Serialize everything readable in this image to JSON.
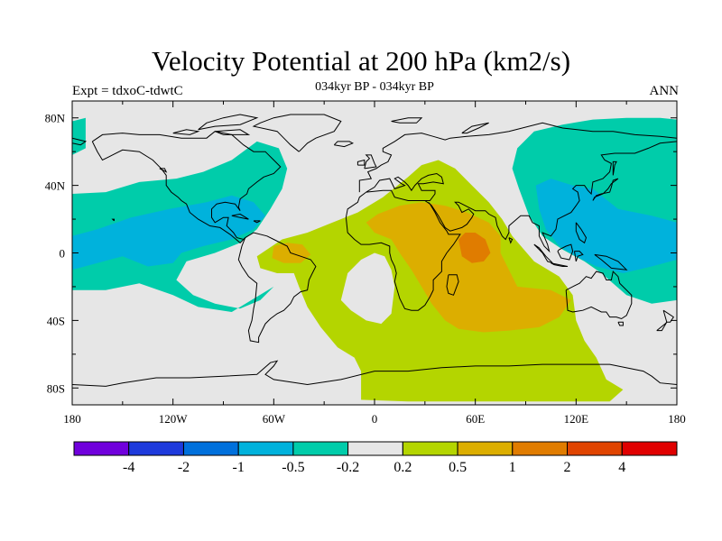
{
  "title": "Velocity Potential at 200 hPa (km2/s)",
  "subtitle": "034kyr BP - 034kyr BP",
  "left_label": "Expt = tdxoC-tdwtC",
  "right_label": "ANN",
  "map": {
    "lon_range": [
      -180,
      180
    ],
    "lat_range": [
      -90,
      90
    ],
    "x_ticks": [
      {
        "value": -180,
        "label": "180"
      },
      {
        "value": -120,
        "label": "120W"
      },
      {
        "value": -60,
        "label": "60W"
      },
      {
        "value": 0,
        "label": "0"
      },
      {
        "value": 60,
        "label": "60E"
      },
      {
        "value": 120,
        "label": "120E"
      },
      {
        "value": 180,
        "label": "180"
      }
    ],
    "y_ticks": [
      {
        "value": 80,
        "label": "80N"
      },
      {
        "value": 40,
        "label": "40N"
      },
      {
        "value": 0,
        "label": "0"
      },
      {
        "value": -40,
        "label": "40S"
      },
      {
        "value": -80,
        "label": "80S"
      }
    ],
    "colors": {
      "neutral": "#e6e6e6",
      "neg_0_5": "#00ccaa",
      "neg_1": "#00b2dc",
      "pos_0_2": "#b4d500",
      "pos_0_5": "#dcae00",
      "pos_1": "#e07c00"
    },
    "regions": [
      {
        "level": "neg_0_5",
        "points": [
          [
            -180,
            78
          ],
          [
            -172,
            80
          ],
          [
            -172,
            62
          ],
          [
            -180,
            58
          ]
        ]
      },
      {
        "level": "neg_0_5",
        "points": [
          [
            -180,
            35
          ],
          [
            -160,
            36
          ],
          [
            -140,
            42
          ],
          [
            -118,
            44
          ],
          [
            -102,
            48
          ],
          [
            -85,
            55
          ],
          [
            -70,
            66
          ],
          [
            -57,
            62
          ],
          [
            -52,
            50
          ],
          [
            -55,
            38
          ],
          [
            -62,
            26
          ],
          [
            -70,
            14
          ],
          [
            -80,
            6
          ],
          [
            -95,
            0
          ],
          [
            -112,
            -5
          ],
          [
            -118,
            -16
          ],
          [
            -108,
            -25
          ],
          [
            -95,
            -30
          ],
          [
            -80,
            -33
          ],
          [
            -68,
            -28
          ],
          [
            -60,
            -20
          ],
          [
            -85,
            -35
          ],
          [
            -105,
            -32
          ],
          [
            -120,
            -25
          ],
          [
            -140,
            -18
          ],
          [
            -160,
            -22
          ],
          [
            -180,
            -22
          ]
        ]
      },
      {
        "level": "neg_1",
        "points": [
          [
            -180,
            10
          ],
          [
            -165,
            14
          ],
          [
            -145,
            21
          ],
          [
            -122,
            26
          ],
          [
            -100,
            30
          ],
          [
            -85,
            34
          ],
          [
            -72,
            30
          ],
          [
            -65,
            22
          ],
          [
            -72,
            14
          ],
          [
            -85,
            8
          ],
          [
            -102,
            4
          ],
          [
            -115,
            0
          ],
          [
            -120,
            -6
          ],
          [
            -135,
            -8
          ],
          [
            -150,
            -2
          ],
          [
            -165,
            -6
          ],
          [
            -180,
            -10
          ]
        ]
      },
      {
        "level": "neg_0_5",
        "points": [
          [
            -131,
            -10
          ],
          [
            -124,
            -8
          ],
          [
            -119,
            -13
          ],
          [
            -124,
            -16
          ],
          [
            -131,
            -14
          ]
        ]
      },
      {
        "level": "neg_0_5",
        "points": [
          [
            -8,
            2
          ],
          [
            -4,
            5
          ],
          [
            2,
            4
          ],
          [
            4,
            -2
          ],
          [
            0,
            -8
          ],
          [
            -6,
            -7
          ]
        ]
      },
      {
        "level": "neg_0_5",
        "points": [
          [
            85,
            62
          ],
          [
            95,
            72
          ],
          [
            112,
            76
          ],
          [
            130,
            79
          ],
          [
            150,
            80
          ],
          [
            170,
            80
          ],
          [
            180,
            79
          ],
          [
            180,
            -28
          ],
          [
            165,
            -30
          ],
          [
            150,
            -25
          ],
          [
            135,
            -12
          ],
          [
            125,
            -5
          ],
          [
            112,
            2
          ],
          [
            100,
            10
          ],
          [
            92,
            22
          ],
          [
            86,
            38
          ],
          [
            82,
            50
          ]
        ]
      },
      {
        "level": "neg_1",
        "points": [
          [
            96,
            40
          ],
          [
            105,
            44
          ],
          [
            118,
            40
          ],
          [
            130,
            38
          ],
          [
            145,
            26
          ],
          [
            165,
            22
          ],
          [
            180,
            18
          ],
          [
            180,
            -4
          ],
          [
            165,
            -8
          ],
          [
            148,
            -12
          ],
          [
            132,
            -8
          ],
          [
            120,
            -2
          ],
          [
            110,
            4
          ],
          [
            102,
            14
          ],
          [
            98,
            26
          ]
        ]
      },
      {
        "level": "pos_0_2",
        "points": [
          [
            -70,
            -2
          ],
          [
            -55,
            8
          ],
          [
            -40,
            12
          ],
          [
            -25,
            18
          ],
          [
            -10,
            24
          ],
          [
            5,
            33
          ],
          [
            20,
            45
          ],
          [
            28,
            52
          ],
          [
            38,
            55
          ],
          [
            48,
            50
          ],
          [
            58,
            40
          ],
          [
            68,
            30
          ],
          [
            76,
            20
          ],
          [
            82,
            10
          ],
          [
            95,
            -5
          ],
          [
            110,
            -14
          ],
          [
            118,
            -25
          ],
          [
            120,
            -40
          ],
          [
            125,
            -52
          ],
          [
            132,
            -62
          ],
          [
            138,
            -75
          ],
          [
            148,
            -81
          ],
          [
            140,
            -88
          ],
          [
            110,
            -88
          ],
          [
            60,
            -88
          ],
          [
            20,
            -88
          ],
          [
            -8,
            -87
          ],
          [
            -8,
            -70
          ],
          [
            -12,
            -62
          ],
          [
            -22,
            -56
          ],
          [
            -32,
            -44
          ],
          [
            -40,
            -32
          ],
          [
            -45,
            -20
          ],
          [
            -48,
            -12
          ],
          [
            -58,
            -12
          ],
          [
            -68,
            -9
          ]
        ]
      },
      {
        "level": "neutral",
        "points": [
          [
            -20,
            -28
          ],
          [
            -14,
            -34
          ],
          [
            -5,
            -40
          ],
          [
            4,
            -42
          ],
          [
            10,
            -36
          ],
          [
            12,
            -20
          ],
          [
            10,
            -10
          ],
          [
            6,
            -2
          ],
          [
            0,
            0
          ],
          [
            -8,
            -4
          ],
          [
            -16,
            -12
          ]
        ]
      },
      {
        "level": "pos_0_5",
        "points": [
          [
            -5,
            18
          ],
          [
            2,
            23
          ],
          [
            15,
            28
          ],
          [
            28,
            30
          ],
          [
            42,
            28
          ],
          [
            55,
            24
          ],
          [
            68,
            18
          ],
          [
            75,
            10
          ],
          [
            75,
            0
          ],
          [
            80,
            -10
          ],
          [
            85,
            -20
          ],
          [
            105,
            -22
          ],
          [
            117,
            -28
          ],
          [
            110,
            -38
          ],
          [
            98,
            -44
          ],
          [
            80,
            -46
          ],
          [
            65,
            -47
          ],
          [
            50,
            -45
          ],
          [
            42,
            -40
          ],
          [
            34,
            -30
          ],
          [
            28,
            -20
          ],
          [
            22,
            -10
          ],
          [
            15,
            0
          ],
          [
            10,
            8
          ],
          [
            0,
            12
          ]
        ]
      },
      {
        "level": "pos_0_5",
        "points": [
          [
            -60,
            4
          ],
          [
            -52,
            6
          ],
          [
            -43,
            5
          ],
          [
            -38,
            -1
          ],
          [
            -44,
            -6
          ],
          [
            -54,
            -6
          ],
          [
            -61,
            -3
          ]
        ]
      },
      {
        "level": "pos_1",
        "points": [
          [
            50,
            8
          ],
          [
            54,
            12
          ],
          [
            60,
            12
          ],
          [
            66,
            8
          ],
          [
            69,
            0
          ],
          [
            65,
            -5
          ],
          [
            58,
            -6
          ],
          [
            52,
            -2
          ]
        ]
      }
    ]
  },
  "colorbar": {
    "colors": [
      "#7000dc",
      "#1e3adc",
      "#0070dc",
      "#00b2dc",
      "#00ccaa",
      "#e6e6e6",
      "#b4d500",
      "#dcae00",
      "#e07c00",
      "#e04400",
      "#e00000"
    ],
    "labels": [
      "-4",
      "-2",
      "-1",
      "-0.5",
      "-0.2",
      "0.2",
      "0.5",
      "1",
      "2",
      "4"
    ]
  }
}
